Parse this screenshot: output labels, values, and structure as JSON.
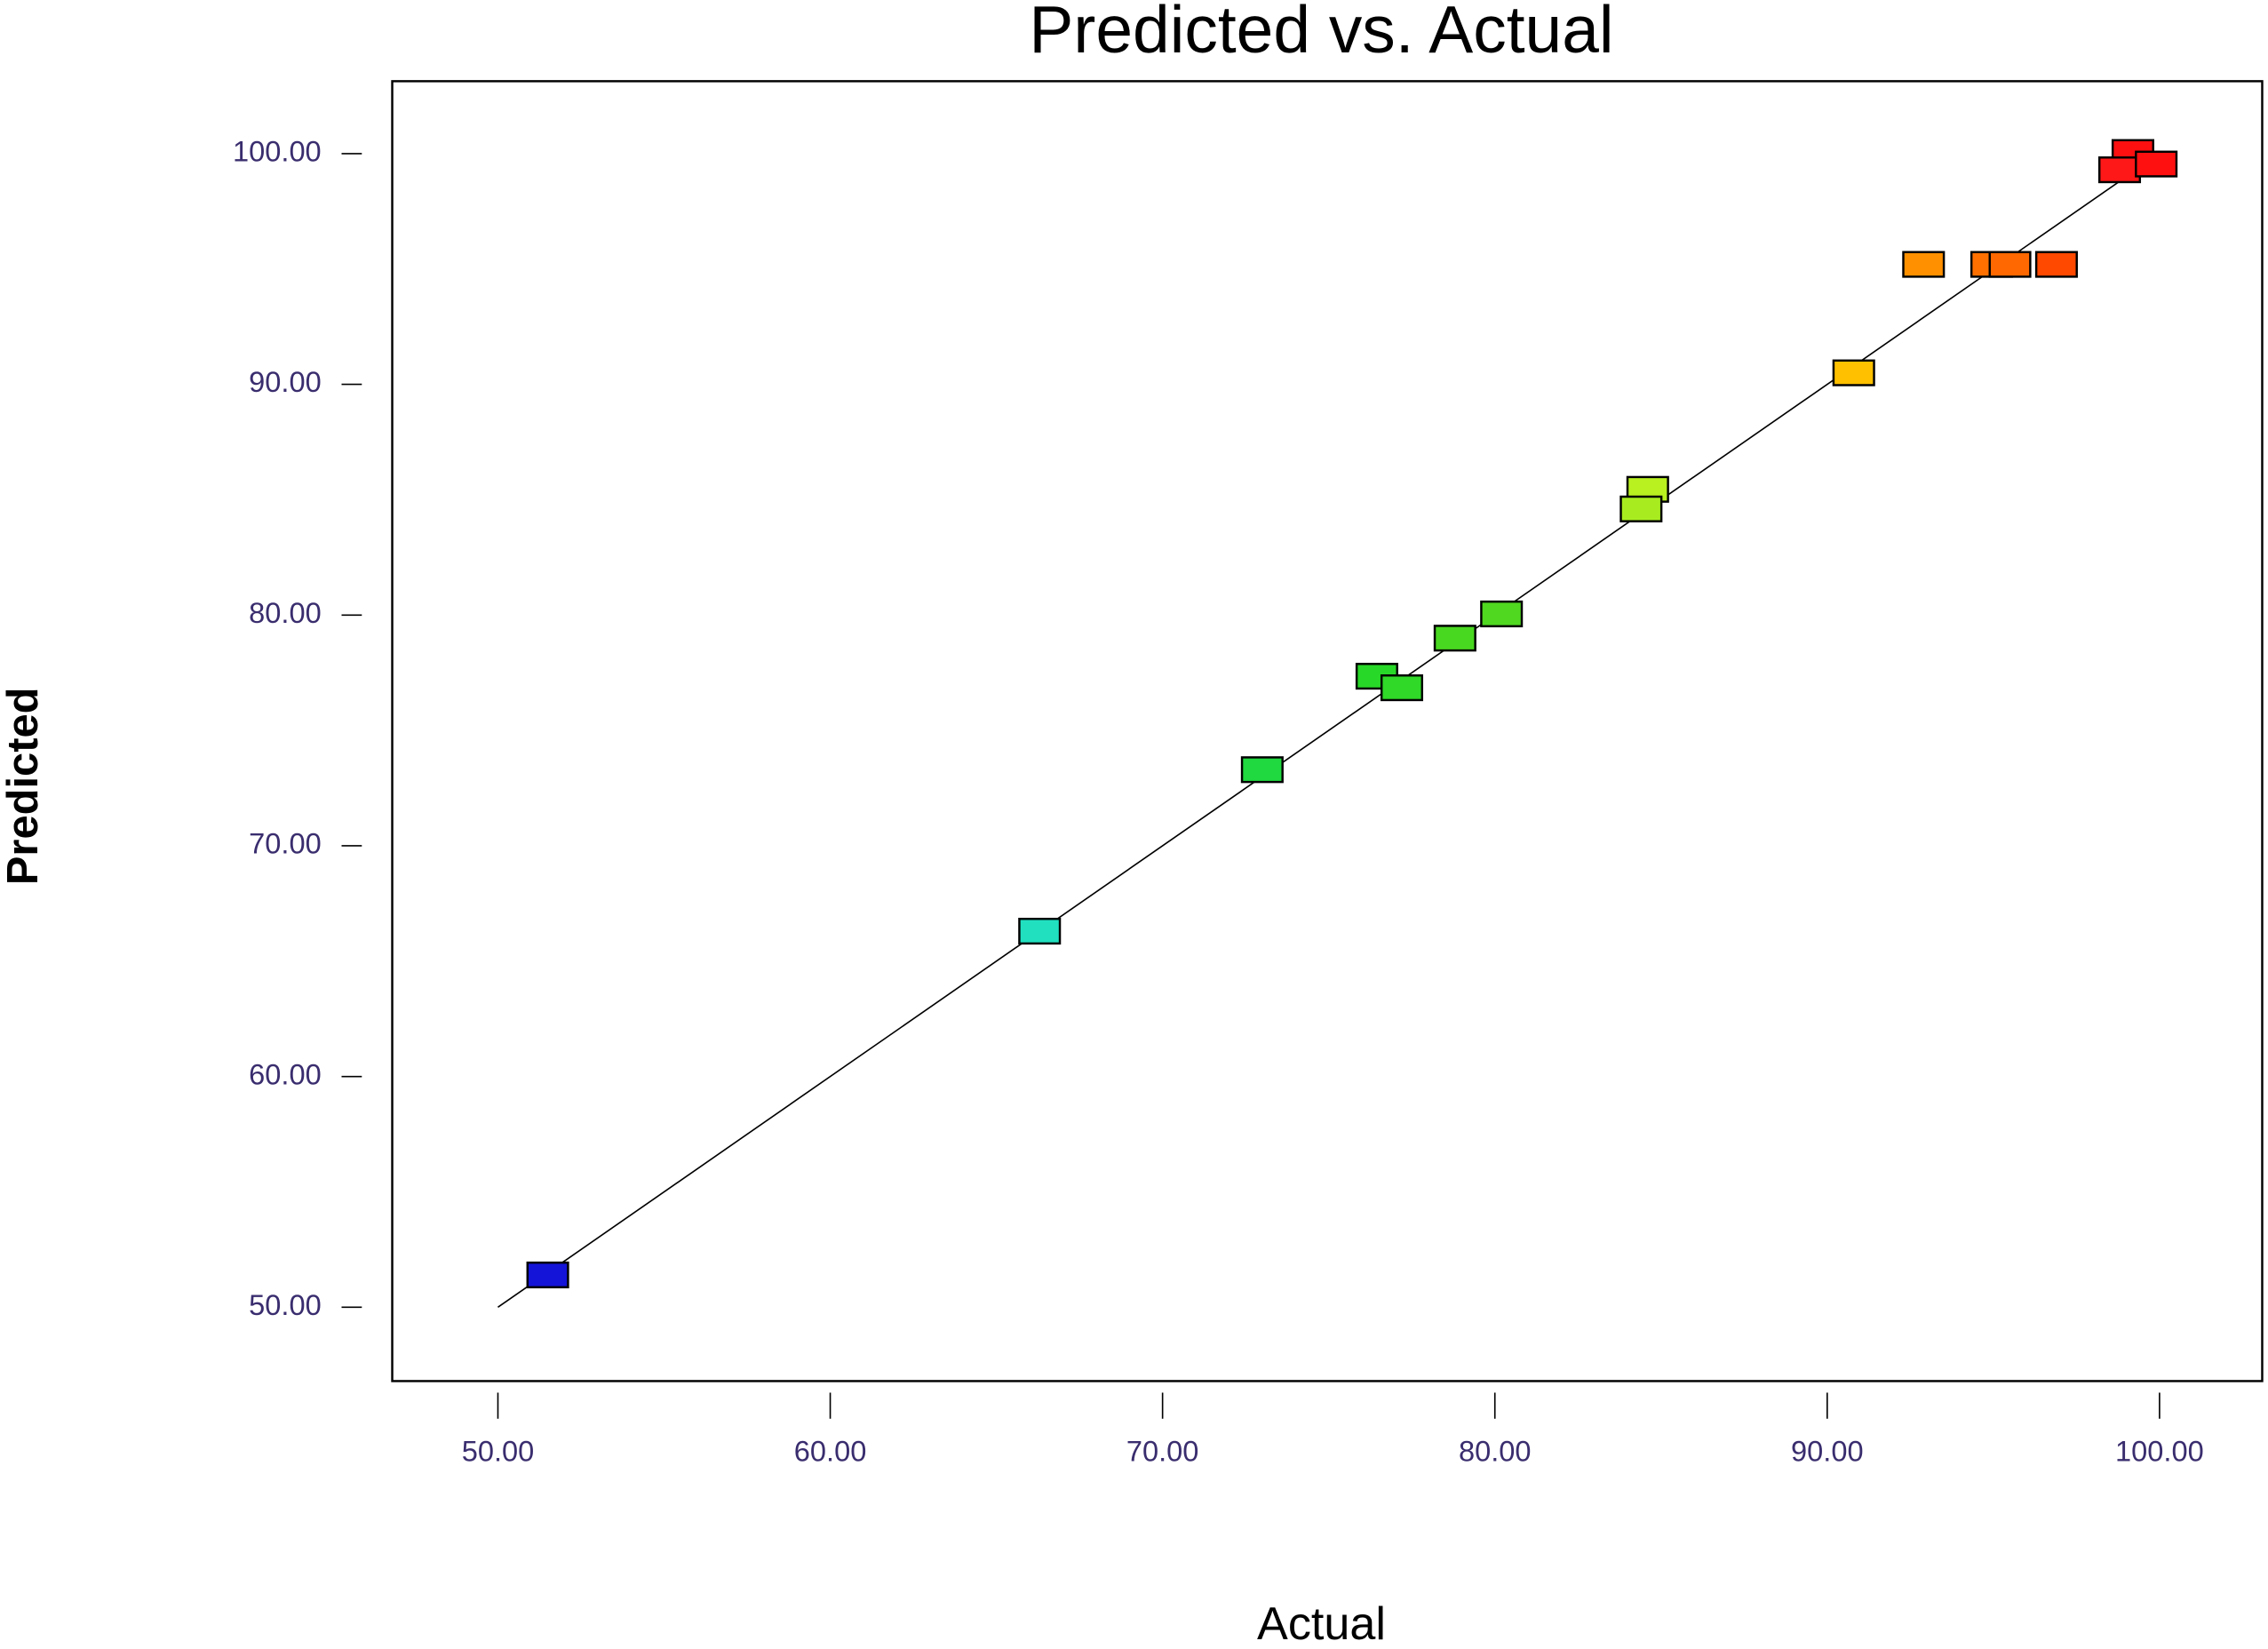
{
  "chart_data": {
    "type": "scatter",
    "title": "Predicted vs. Actual",
    "x_label": "Actual",
    "y_label": "Predicted",
    "x": [
      51.5,
      66.3,
      73.0,
      76.45,
      77.2,
      78.8,
      80.2,
      84.6,
      84.4,
      90.8,
      92.9,
      94.95,
      95.5,
      96.9,
      99.2,
      98.8,
      99.9
    ],
    "values": [
      51.4,
      66.3,
      73.3,
      77.35,
      76.85,
      79.0,
      80.05,
      85.45,
      84.6,
      90.5,
      95.2,
      95.2,
      95.2,
      95.2,
      100.05,
      99.3,
      99.55
    ],
    "colors": [
      "#1414d8",
      "#20e0c0",
      "#20d840",
      "#28d828",
      "#30d828",
      "#48d820",
      "#50d820",
      "#b8f020",
      "#a8ec20",
      "#ffc000",
      "#ff9000",
      "#ff7000",
      "#ff6800",
      "#ff4800",
      "#ff1010",
      "#ff1818",
      "#ff1010"
    ],
    "reference_line": {
      "x": [
        50,
        100
      ],
      "y": [
        50,
        100
      ]
    },
    "xlim": [
      46.82,
      103.09
    ],
    "ylim": [
      46.8,
      103.14
    ],
    "xticks": [
      {
        "value": 50,
        "label": "50.00"
      },
      {
        "value": 60,
        "label": "60.00"
      },
      {
        "value": 70,
        "label": "70.00"
      },
      {
        "value": 80,
        "label": "80.00"
      },
      {
        "value": 90,
        "label": "90.00"
      },
      {
        "value": 100,
        "label": "100.00"
      }
    ],
    "yticks": [
      {
        "value": 50,
        "label": "50.00"
      },
      {
        "value": 60,
        "label": "60.00"
      },
      {
        "value": 70,
        "label": "70.00"
      },
      {
        "value": 80,
        "label": "80.00"
      },
      {
        "value": 90,
        "label": "90.00"
      },
      {
        "value": 100,
        "label": "100.00"
      }
    ]
  }
}
